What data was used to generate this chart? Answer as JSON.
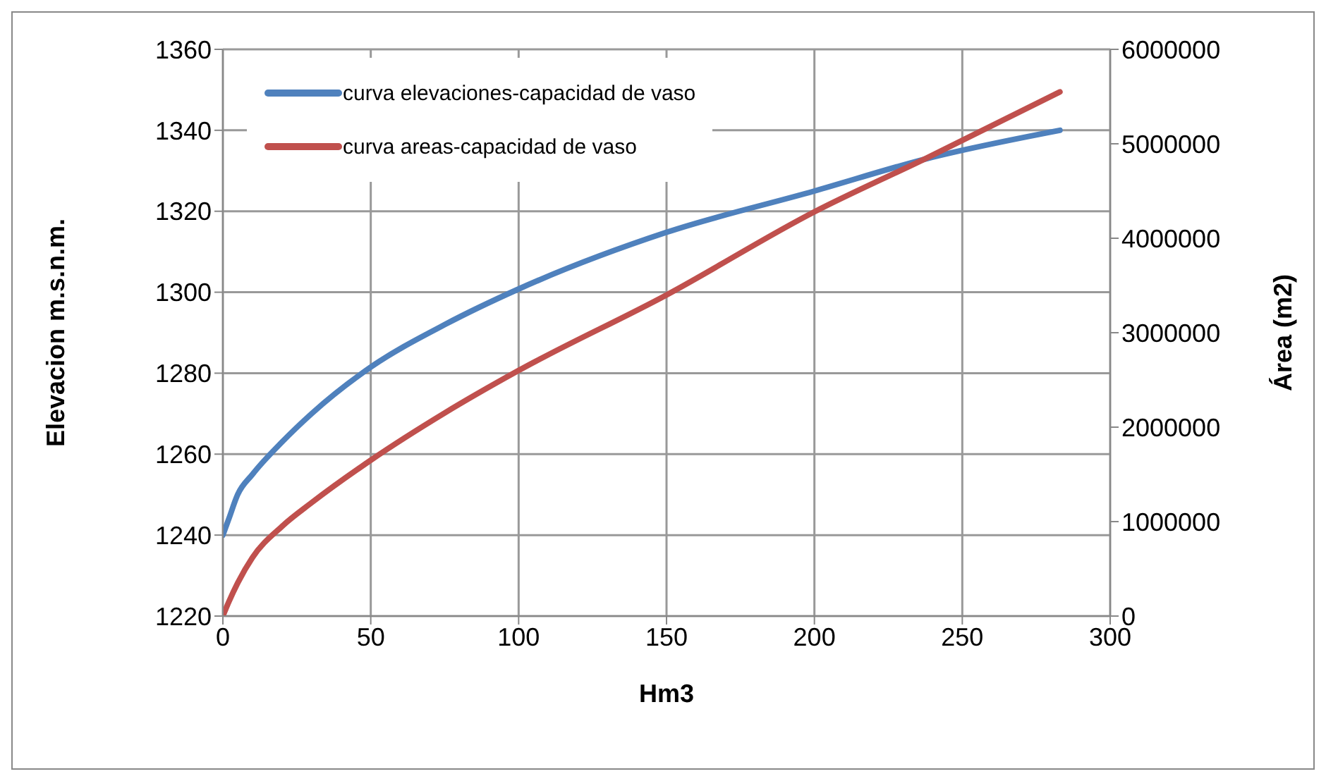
{
  "chart_data": {
    "type": "line",
    "xlabel": "Hm3",
    "ylabel": "Elevacion  m.s.n.m.",
    "y2label": "Área (m2)",
    "x": [
      0,
      2,
      5,
      10,
      20,
      30,
      50,
      75,
      100,
      150,
      200,
      238,
      283
    ],
    "series": [
      {
        "name": "curva elevaciones-capacidad de vaso",
        "color": "#4f81bd",
        "values": [
          1240,
          1244,
          1250,
          1255,
          1263,
          1270,
          1281.5,
          1292,
          1300.8,
          1314.8,
          1325,
          1333,
          1340
        ]
      },
      {
        "name": "curva areas-capacidad de vaso",
        "color": "#c0504d",
        "axis": "y2",
        "values": [
          0,
          150000,
          350000,
          620000,
          950000,
          1200000,
          1650000,
          2150000,
          2600000,
          3400000,
          4280000,
          4850000,
          5550000
        ]
      }
    ],
    "xlim": [
      0,
      300
    ],
    "xticks": [
      0,
      50,
      100,
      150,
      200,
      250,
      300
    ],
    "ylim": [
      1220,
      1360
    ],
    "yticks": [
      1220,
      1240,
      1260,
      1280,
      1300,
      1320,
      1340,
      1360
    ],
    "y2lim": [
      0,
      6000000
    ],
    "y2ticks": [
      0,
      1000000,
      2000000,
      3000000,
      4000000,
      5000000,
      6000000
    ],
    "grid": true,
    "legend": "top left",
    "marker": "none",
    "line_style": "solid"
  }
}
